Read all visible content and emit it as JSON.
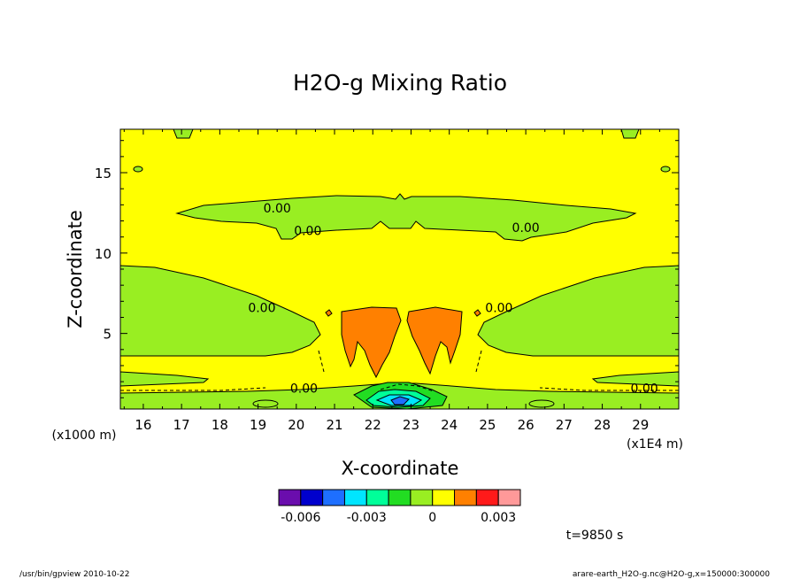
{
  "chart_data": {
    "type": "contour",
    "title": "H2O-g Mixing Ratio",
    "xlabel": "X-coordinate",
    "ylabel": "Z-coordinate",
    "x_unit_label": "(x1E4 m)",
    "y_unit_label": "(x1000 m)",
    "xlim": [
      15.4,
      30.0
    ],
    "ylim": [
      0.3,
      17.7
    ],
    "x_ticks": [
      16,
      17,
      18,
      19,
      20,
      21,
      22,
      23,
      24,
      25,
      26,
      27,
      28,
      29
    ],
    "y_ticks": [
      5,
      10,
      15
    ],
    "contour_labels": [
      {
        "text": "0.00",
        "x": 19.5,
        "y": 12.8
      },
      {
        "text": "0.00",
        "x": 20.3,
        "y": 11.4
      },
      {
        "text": "0.00",
        "x": 26.0,
        "y": 11.6
      },
      {
        "text": "0.00",
        "x": 19.1,
        "y": 6.6
      },
      {
        "text": "0.00",
        "x": 25.3,
        "y": 6.6
      },
      {
        "text": "0.00",
        "x": 20.2,
        "y": 1.6
      },
      {
        "text": "0.00",
        "x": 29.1,
        "y": 1.6
      }
    ],
    "colorbar": {
      "colors": [
        "#6a0dad",
        "#0000cd",
        "#1e6fff",
        "#00e5ff",
        "#00ff99",
        "#22dd22",
        "#99ee22",
        "#ffff00",
        "#ff8000",
        "#ff1a1a",
        "#ff9999"
      ],
      "tick_values": [
        "-0.006",
        "-0.003",
        "0",
        "0.003"
      ]
    },
    "colors": {
      "background_level": "#ffff00",
      "negative_level": "#99ee22",
      "positive_level": "#ff8000"
    }
  },
  "time_label": "t=9850 s",
  "footer_left": "/usr/bin/gpview   2010-10-22",
  "footer_right": "arare-earth_H2O-g.nc@H2O-g,x=150000:300000"
}
